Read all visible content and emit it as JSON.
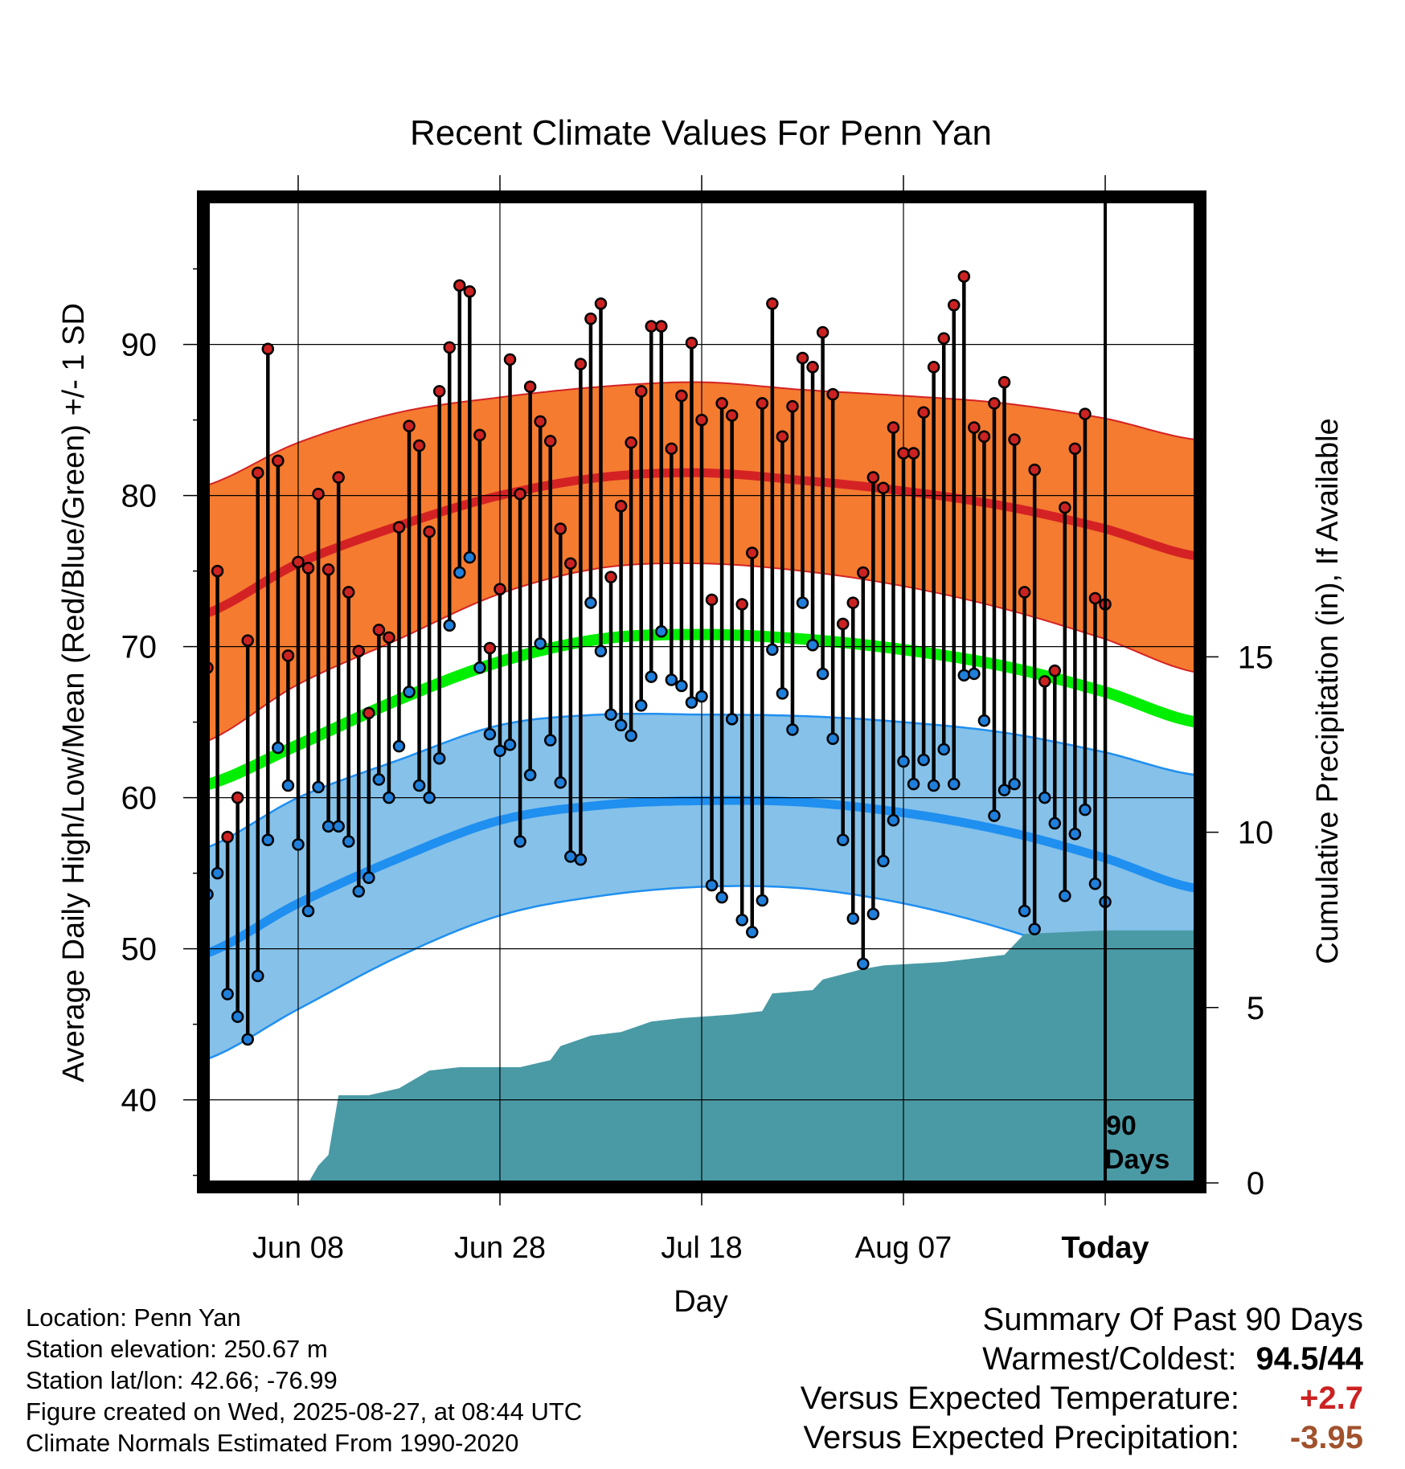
{
  "chart_data": {
    "type": "line",
    "title": "Recent Climate Values For Penn Yan",
    "xlabel": "Day",
    "ylabel_left": "Average Daily High/Low/Mean (Red/Blue/Green) +/- 1 SD",
    "ylabel_right": "Cumulative Precipitation (in), If Available",
    "x_range_days": [
      -89,
      9
    ],
    "y_range_temp": [
      34.5,
      99.5
    ],
    "y_range_precip": [
      0,
      28
    ],
    "x_ticks": [
      {
        "day": -80,
        "label": "Jun 08"
      },
      {
        "day": -60,
        "label": "Jun 28"
      },
      {
        "day": -40,
        "label": "Jul 18"
      },
      {
        "day": -20,
        "label": "Aug 07"
      },
      {
        "day": 0,
        "label": "Today"
      }
    ],
    "y_ticks_temp": [
      40,
      50,
      60,
      70,
      80,
      90
    ],
    "y_ticks_precip": [
      0,
      5,
      10,
      15
    ],
    "today_label_line1": "90",
    "today_label_line2": "Days",
    "normals": {
      "days": [
        -90,
        -80,
        -70,
        -60,
        -50,
        -40,
        -30,
        -20,
        -10,
        0,
        9
      ],
      "high_mean": [
        72,
        75.5,
        78,
        80,
        81.2,
        81.5,
        81,
        80.3,
        79.3,
        77.8,
        76
      ],
      "high_sd": [
        8.5,
        8,
        7.5,
        6.5,
        6,
        6,
        6,
        6.3,
        6.8,
        7.3,
        7.7
      ],
      "low_mean": [
        49.5,
        53,
        56,
        58.5,
        59.5,
        59.8,
        59.7,
        59,
        57.8,
        56,
        54
      ],
      "low_sd": [
        7,
        7,
        6.5,
        6.3,
        6,
        5.7,
        5.7,
        6,
        6.5,
        7,
        7.5
      ],
      "avg_mean": [
        60.7,
        63.5,
        66.5,
        69,
        70.5,
        70.8,
        70.5,
        69.8,
        68.7,
        67,
        65
      ]
    },
    "series": [
      {
        "name": "High",
        "values": [
          68.6,
          75,
          57.4,
          60,
          70.4,
          81.5,
          89.7,
          82.3,
          69.4,
          75.6,
          75.2,
          80.1,
          75.1,
          81.2,
          73.6,
          69.7,
          65.6,
          71.1,
          70.6,
          77.9,
          84.6,
          83.3,
          77.6,
          86.9,
          89.8,
          93.9,
          93.5,
          84,
          69.9,
          73.8,
          89,
          80.1,
          87.2,
          84.9,
          83.6,
          77.8,
          75.5,
          88.7,
          91.7,
          92.7,
          74.6,
          79.3,
          83.5,
          86.9,
          91.2,
          91.2,
          83.1,
          86.6,
          90.1,
          85,
          73.1,
          86.1,
          85.3,
          72.8,
          76.2,
          86.1,
          92.7,
          83.9,
          85.9,
          89.1,
          88.5,
          90.8,
          86.7,
          71.5,
          72.9,
          74.9,
          81.2,
          80.5,
          84.5,
          82.8,
          82.8,
          85.5,
          88.5,
          90.4,
          92.6,
          94.5,
          84.5,
          83.9,
          86.1,
          87.5,
          83.7,
          73.6,
          81.7,
          67.7,
          68.4,
          79.2,
          83.1,
          85.4,
          73.2,
          72.8
        ]
      },
      {
        "name": "Low",
        "values": [
          53.6,
          55,
          47,
          45.5,
          44,
          48.2,
          57.2,
          63.3,
          60.8,
          56.9,
          52.5,
          60.7,
          58.1,
          58.1,
          57.1,
          53.8,
          54.7,
          61.2,
          60,
          63.4,
          67,
          60.8,
          60,
          62.6,
          71.4,
          74.9,
          75.9,
          68.6,
          64.2,
          63.1,
          63.5,
          57.1,
          61.5,
          70.2,
          63.8,
          61,
          56.1,
          55.9,
          72.9,
          69.7,
          65.5,
          64.8,
          64.1,
          66.1,
          68,
          71,
          67.8,
          67.4,
          66.3,
          66.7,
          54.2,
          53.4,
          65.2,
          51.9,
          51.1,
          53.2,
          69.8,
          66.9,
          64.5,
          72.9,
          70.1,
          68.2,
          63.9,
          57.2,
          52,
          49,
          52.3,
          55.8,
          58.5,
          62.4,
          60.9,
          62.5,
          60.8,
          63.2,
          60.9,
          68.1,
          68.2,
          65.1,
          58.8,
          60.5,
          60.9,
          52.5,
          51.3,
          60,
          58.3,
          53.5,
          57.6,
          59.2,
          54.3,
          53.1
        ]
      }
    ],
    "precip_cumulative": {
      "days": [
        -89,
        -79,
        -78,
        -77,
        -76,
        -73,
        -70,
        -67,
        -64,
        -61,
        -58,
        -55,
        -54,
        -51,
        -48,
        -45,
        -42,
        -37,
        -34,
        -33,
        -29,
        -28,
        -24,
        -22,
        -16,
        -10,
        -8,
        0,
        9
      ],
      "values": [
        0,
        0,
        0.5,
        0.8,
        2.5,
        2.5,
        2.7,
        3.2,
        3.3,
        3.3,
        3.3,
        3.5,
        3.9,
        4.2,
        4.3,
        4.6,
        4.7,
        4.8,
        4.9,
        5.4,
        5.5,
        5.8,
        6.1,
        6.2,
        6.3,
        6.5,
        7.1,
        7.2,
        7.2
      ]
    }
  },
  "info": {
    "location": "Location: Penn Yan",
    "elevation": "Station elevation: 250.67 m",
    "latlon": "Station lat/lon: 42.66; -76.99",
    "created": "Figure created on Wed, 2025-08-27, at 08:44 UTC",
    "normals": "Climate Normals Estimated From 1990-2020"
  },
  "summary": {
    "heading": "Summary Of Past 90 Days",
    "warmest_label": "Warmest/Coldest:",
    "warmest_value": "94.5/44",
    "temp_label": "Versus Expected Temperature:",
    "temp_value": "+2.7",
    "precip_label": "Versus Expected Precipitation:",
    "precip_value": "-3.95",
    "colors": {
      "temp_value": "#cc2222",
      "precip_value": "#a0522d"
    }
  },
  "colors": {
    "high_band": "#f47b30",
    "high_line": "#d42224",
    "low_band": "#85c1e9",
    "low_line": "#1f8ff0",
    "mean_line": "#00ee00",
    "precip_fill": "#4a9aa5",
    "high_point": "#cc2222",
    "low_point": "#1f7fdb"
  }
}
